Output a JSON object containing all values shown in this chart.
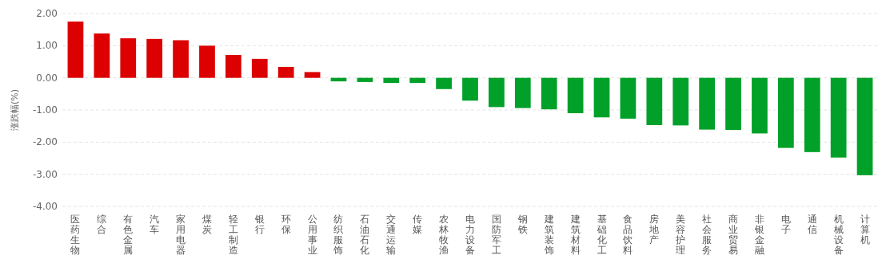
{
  "chart_data": {
    "type": "bar",
    "ylabel": "涨跌幅(%)",
    "categories": [
      "医药生物",
      "综合",
      "有色金属",
      "汽车",
      "家用电器",
      "煤炭",
      "轻工制造",
      "银行",
      "环保",
      "公用事业",
      "纺织服饰",
      "石油石化",
      "交通运输",
      "传媒",
      "农林牧渔",
      "电力设备",
      "国防军工",
      "钢铁",
      "建筑装饰",
      "建筑材料",
      "基础化工",
      "食品饮料",
      "房地产",
      "美容护理",
      "社会服务",
      "商业贸易",
      "非银金融",
      "电子",
      "通信",
      "机械设备",
      "计算机"
    ],
    "values": [
      1.75,
      1.38,
      1.23,
      1.21,
      1.17,
      1.0,
      0.71,
      0.59,
      0.34,
      0.18,
      -0.11,
      -0.13,
      -0.16,
      -0.16,
      -0.35,
      -0.71,
      -0.91,
      -0.94,
      -0.98,
      -1.1,
      -1.23,
      -1.27,
      -1.47,
      -1.48,
      -1.61,
      -1.62,
      -1.73,
      -2.18,
      -2.31,
      -2.48,
      -3.03
    ],
    "colors": [
      "#dc0000",
      "#dc0000",
      "#dc0000",
      "#dc0000",
      "#dc0000",
      "#dc0000",
      "#dc0000",
      "#dc0000",
      "#dc0000",
      "#dc0000",
      "#00a029",
      "#00a029",
      "#00a029",
      "#00a029",
      "#00a029",
      "#00a029",
      "#00a029",
      "#00a029",
      "#00a029",
      "#00a029",
      "#00a029",
      "#00a029",
      "#00a029",
      "#00a029",
      "#00a029",
      "#00a029",
      "#00a029",
      "#00a029",
      "#00a029",
      "#00a029",
      "#00a029"
    ],
    "ylim": [
      -4,
      2
    ],
    "yticks": [
      {
        "value": -4,
        "label": "-4.00"
      },
      {
        "value": -3,
        "label": "-3.00"
      },
      {
        "value": -2,
        "label": "-2.00"
      },
      {
        "value": -1,
        "label": "-1.00"
      },
      {
        "value": 0,
        "label": "0.00"
      },
      {
        "value": 1,
        "label": "1.00"
      },
      {
        "value": 2,
        "label": "2.00"
      }
    ],
    "grid": "y"
  }
}
